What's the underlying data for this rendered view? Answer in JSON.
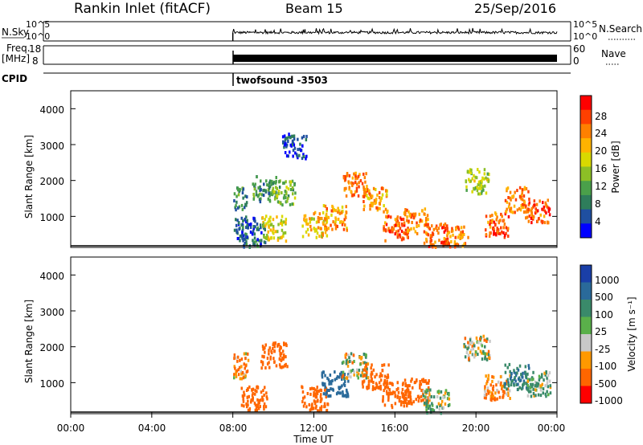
{
  "header": {
    "station": "Rankin Inlet (fitACF)",
    "beam": "Beam 15",
    "date": "25/Sep/2016"
  },
  "noise_panel": {
    "left_label": "N.Sky",
    "right_label": "N.Search",
    "right_ticks": [
      "10^5",
      "10^0"
    ],
    "left_ticks": [
      "10^5",
      "10^0"
    ]
  },
  "freq_panel": {
    "left_label_1": "Freq.",
    "left_label_2": "[MHz]",
    "left_ticks": [
      "18",
      "8"
    ],
    "right_label": "Nave",
    "right_ticks": [
      "60",
      "0"
    ]
  },
  "cpid": {
    "label": "CPID",
    "program": "twofsound -3503"
  },
  "power_panel": {
    "ylabel": "Slant Range [km]",
    "yticks": [
      "4000",
      "3000",
      "2000",
      "1000"
    ],
    "colorbar_label": "Power [dB]",
    "colorbar_ticks": [
      "28",
      "24",
      "20",
      "16",
      "12",
      "8",
      "4"
    ],
    "colors": [
      "#ff0000",
      "#ff4000",
      "#ff8000",
      "#ffb300",
      "#d9d900",
      "#8cbf26",
      "#4aa04a",
      "#2e7d5b",
      "#1f4fa0",
      "#0000ff"
    ]
  },
  "velocity_panel": {
    "ylabel": "Slant Range [km]",
    "yticks": [
      "4000",
      "3000",
      "2000",
      "1000"
    ],
    "colorbar_label": "Velocity [m s⁻¹]",
    "colorbar_ticks": [
      "1000",
      "500",
      "100",
      "25",
      "-25",
      "-100",
      "-500",
      "-1000"
    ],
    "colors": [
      "#1a3fa8",
      "#2a6a9a",
      "#3a8a6a",
      "#5ab04a",
      "#c8c8c8",
      "#ff9900",
      "#ff6600",
      "#ff0000"
    ]
  },
  "xaxis": {
    "label": "Time UT",
    "ticks": [
      "00:00",
      "04:00",
      "08:00",
      "12:00",
      "16:00",
      "20:00",
      "00:00"
    ]
  },
  "chart_data": {
    "type": "heatmap",
    "xlabel": "Time UT",
    "ylabel": "Slant Range [km]",
    "x_range_hours": [
      0,
      24
    ],
    "y_range_km": [
      180,
      4500
    ],
    "data_start_hour": 8,
    "power_dB": [
      {
        "t": 8.1,
        "r": 1500,
        "p": 10
      },
      {
        "t": 8.5,
        "r": 700,
        "p": 6
      },
      {
        "t": 9.0,
        "r": 500,
        "p": 8
      },
      {
        "t": 9.5,
        "r": 1800,
        "p": 10
      },
      {
        "t": 10.0,
        "r": 700,
        "p": 18
      },
      {
        "t": 10.5,
        "r": 1700,
        "p": 14
      },
      {
        "t": 11.0,
        "r": 3000,
        "p": 6
      },
      {
        "t": 12.0,
        "r": 800,
        "p": 20
      },
      {
        "t": 13.0,
        "r": 1000,
        "p": 22
      },
      {
        "t": 14.0,
        "r": 1900,
        "p": 24
      },
      {
        "t": 15.0,
        "r": 1500,
        "p": 22
      },
      {
        "t": 16.0,
        "r": 700,
        "p": 26
      },
      {
        "t": 17.0,
        "r": 900,
        "p": 24
      },
      {
        "t": 18.0,
        "r": 500,
        "p": 26
      },
      {
        "t": 19.0,
        "r": 400,
        "p": 24
      },
      {
        "t": 20.0,
        "r": 2000,
        "p": 16
      },
      {
        "t": 21.0,
        "r": 800,
        "p": 26
      },
      {
        "t": 22.0,
        "r": 1500,
        "p": 24
      },
      {
        "t": 23.0,
        "r": 1200,
        "p": 26
      }
    ],
    "velocity_ms": [
      {
        "t": 8.1,
        "r": 1500,
        "v": -100
      },
      {
        "t": 9.0,
        "r": 600,
        "v": -300
      },
      {
        "t": 10.0,
        "r": 1800,
        "v": -300
      },
      {
        "t": 12.0,
        "r": 600,
        "v": -300
      },
      {
        "t": 13.0,
        "r": 1000,
        "v": 500
      },
      {
        "t": 14.0,
        "r": 1500,
        "v": 0
      },
      {
        "t": 15.0,
        "r": 1200,
        "v": -300
      },
      {
        "t": 16.0,
        "r": 700,
        "v": -300
      },
      {
        "t": 17.0,
        "r": 800,
        "v": -300
      },
      {
        "t": 18.0,
        "r": 500,
        "v": 50
      },
      {
        "t": 20.0,
        "r": 2000,
        "v": 0
      },
      {
        "t": 21.0,
        "r": 900,
        "v": -100
      },
      {
        "t": 22.0,
        "r": 1200,
        "v": 300
      },
      {
        "t": 23.0,
        "r": 1000,
        "v": 100
      }
    ]
  }
}
